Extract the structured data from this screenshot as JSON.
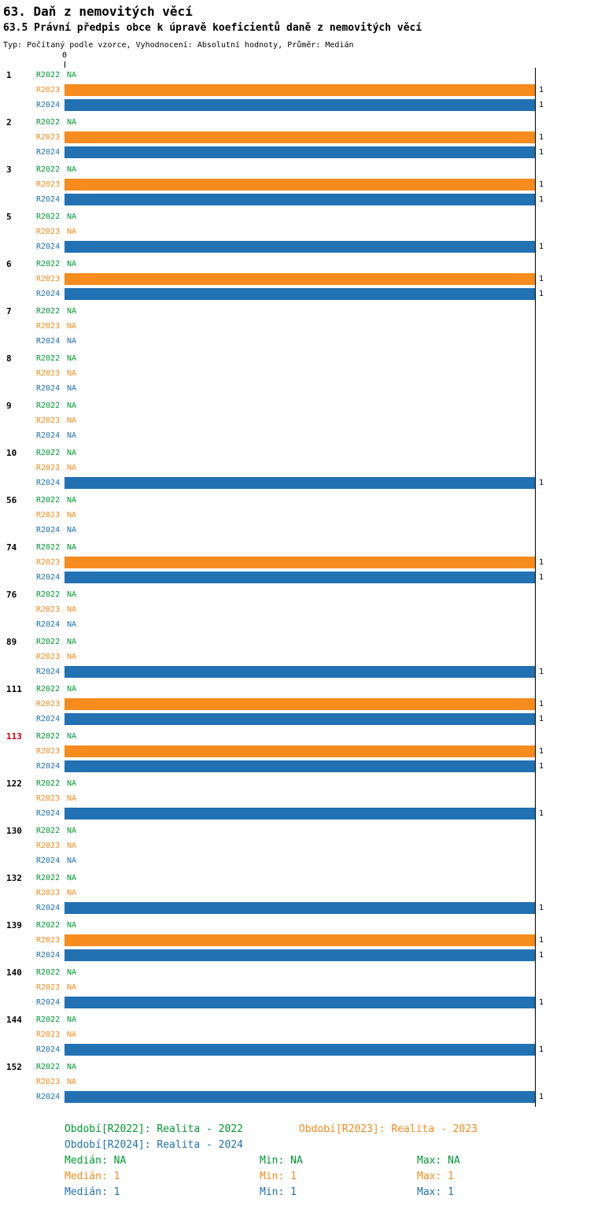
{
  "header": {
    "title": "63. Daň z nemovitých věcí",
    "subtitle": "63.5 Právní předpis obce k úpravě koeficientů daně z nemovitých věcí",
    "meta": "Typ: Počítaný podle vzorce, Vyhodnocení: Absolutní hodnoty, Průměr: Medián"
  },
  "chart_data": {
    "type": "bar",
    "orientation": "horizontal",
    "xlim": [
      0,
      1
    ],
    "x_tick_label": "0",
    "na_label": "NA",
    "grid": "right-edge-line-at-1",
    "legend_position": "bottom",
    "highlight_id_color": "#CC0000",
    "series": [
      {
        "name": "R2022",
        "color": "#009933",
        "period_label": "Období[R2022]: Realita - 2022"
      },
      {
        "name": "R2023",
        "color": "#F68B1E",
        "period_label": "Období[R2023]: Realita - 2023"
      },
      {
        "name": "R2024",
        "color": "#2171B3",
        "period_label": "Období[R2024]: Realita - 2024"
      }
    ],
    "stats": [
      {
        "median": "Medián: NA",
        "min": "Min: NA",
        "max": "Max: NA"
      },
      {
        "median": "Medián: 1",
        "min": "Min: 1",
        "max": "Max: 1"
      },
      {
        "median": "Medián: 1",
        "min": "Min: 1",
        "max": "Max: 1"
      }
    ],
    "groups": [
      {
        "id": "1",
        "values": [
          null,
          1,
          1
        ]
      },
      {
        "id": "2",
        "values": [
          null,
          1,
          1
        ]
      },
      {
        "id": "3",
        "values": [
          null,
          1,
          1
        ]
      },
      {
        "id": "5",
        "values": [
          null,
          null,
          1
        ]
      },
      {
        "id": "6",
        "values": [
          null,
          1,
          1
        ]
      },
      {
        "id": "7",
        "values": [
          null,
          null,
          null
        ]
      },
      {
        "id": "8",
        "values": [
          null,
          null,
          null
        ]
      },
      {
        "id": "9",
        "values": [
          null,
          null,
          null
        ]
      },
      {
        "id": "10",
        "values": [
          null,
          null,
          1
        ]
      },
      {
        "id": "56",
        "values": [
          null,
          null,
          null
        ]
      },
      {
        "id": "74",
        "values": [
          null,
          1,
          1
        ]
      },
      {
        "id": "76",
        "values": [
          null,
          null,
          null
        ]
      },
      {
        "id": "89",
        "values": [
          null,
          null,
          1
        ]
      },
      {
        "id": "111",
        "values": [
          null,
          1,
          1
        ]
      },
      {
        "id": "113",
        "highlighted": true,
        "values": [
          null,
          1,
          1
        ]
      },
      {
        "id": "122",
        "values": [
          null,
          null,
          1
        ]
      },
      {
        "id": "130",
        "values": [
          null,
          null,
          null
        ]
      },
      {
        "id": "132",
        "values": [
          null,
          null,
          1
        ]
      },
      {
        "id": "139",
        "values": [
          null,
          1,
          1
        ]
      },
      {
        "id": "140",
        "values": [
          null,
          null,
          1
        ]
      },
      {
        "id": "144",
        "values": [
          null,
          null,
          1
        ]
      },
      {
        "id": "152",
        "values": [
          null,
          null,
          1
        ]
      }
    ]
  }
}
